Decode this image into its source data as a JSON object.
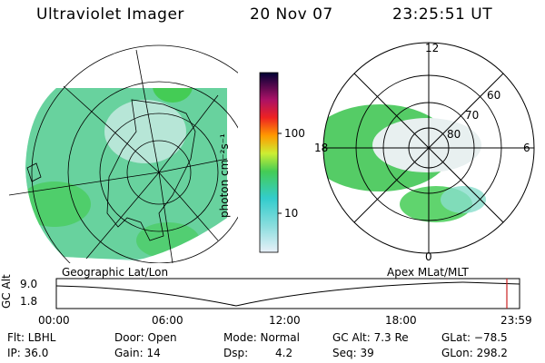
{
  "header": {
    "instrument": "Ultraviolet Imager",
    "date": "20 Nov 07",
    "time": "23:25:51 UT"
  },
  "colorbar": {
    "unit_label": "photon cm⁻²s⁻¹",
    "ticks": [
      "100",
      "10"
    ]
  },
  "left_panel": {
    "label": "Geographic Lat/Lon"
  },
  "right_panel": {
    "label": "Apex MLat/MLT",
    "mlt_labels": {
      "top": "12",
      "left": "18",
      "right": "6",
      "bottom": "0"
    },
    "lat_labels": [
      "60",
      "70",
      "80"
    ]
  },
  "altitude_plot": {
    "ylabel": "GC Alt",
    "yticks": [
      "9.0",
      "1.8"
    ],
    "xticks": [
      "00:00",
      "06:00",
      "12:00",
      "18:00",
      "23:59"
    ],
    "marker_time": "23:25"
  },
  "status": {
    "filter": "Flt: LBHL",
    "door": "Door: Open",
    "mode": "Mode: Normal",
    "gc_alt": "GC Alt: 7.3 Re",
    "glat": "GLat: −78.5",
    "ip": "IP: 36.0",
    "gain": "Gain: 14",
    "dsp_label": "Dsp:",
    "dsp_value": "4.2",
    "seq": "Seq: 39",
    "glon": "GLon: 298.2"
  },
  "colors": {
    "auroral_green": "#44cc55",
    "auroral_cyan": "#33cccc",
    "marker": "#cc2222"
  }
}
